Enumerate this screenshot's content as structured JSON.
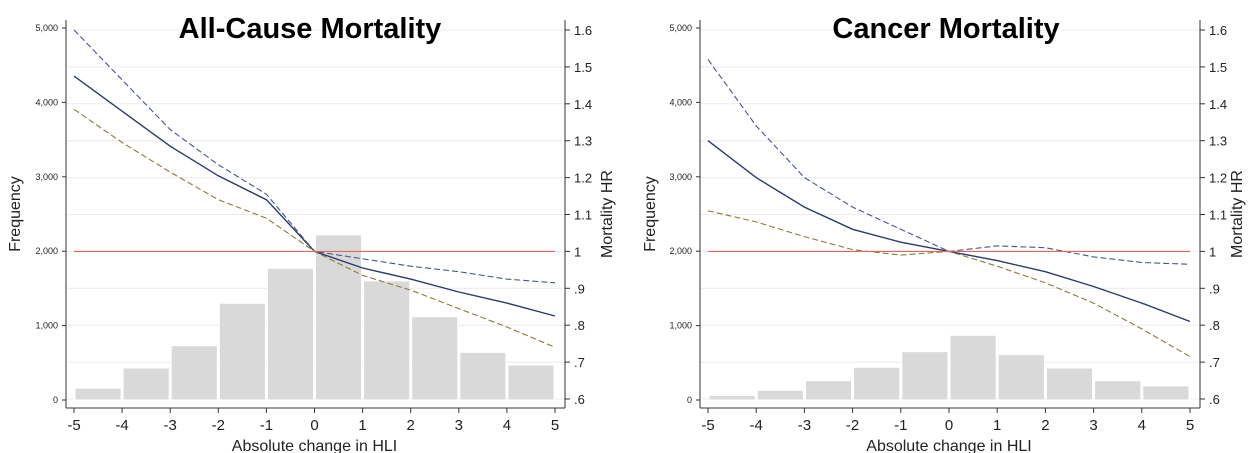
{
  "chart_data": [
    {
      "type": "bar",
      "title": "All-Cause Mortality",
      "xlabel": "Absolute change in HLI",
      "ylabel": "Frequency",
      "y2label": "Mortality HR",
      "xlim": [
        -5,
        5
      ],
      "ylim": [
        0,
        5000
      ],
      "y2lim": [
        0.6,
        1.6
      ],
      "x_ticks": [
        "-5",
        "-4",
        "-3",
        "-2",
        "-1",
        "0",
        "1",
        "2",
        "3",
        "4",
        "5"
      ],
      "y_ticks": [
        "0",
        "1,000",
        "2,000",
        "3,000",
        "4,000",
        "5,000"
      ],
      "y2_ticks": [
        ".6",
        ".7",
        ".8",
        ".9",
        "1",
        "1.1",
        "1.2",
        "1.3",
        "1.4",
        "1.5",
        "1.6"
      ],
      "grid": true,
      "histogram": {
        "bins": [
          [
            -5,
            -4
          ],
          [
            -4,
            -3
          ],
          [
            -3,
            -2
          ],
          [
            -2,
            -1
          ],
          [
            -1,
            0
          ],
          [
            0,
            1
          ],
          [
            1,
            2
          ],
          [
            2,
            3
          ],
          [
            3,
            4
          ],
          [
            4,
            5
          ]
        ],
        "values": [
          160,
          430,
          730,
          1300,
          1770,
          2220,
          1600,
          1120,
          640,
          470
        ],
        "color": "#d9d9d9"
      },
      "series": [
        {
          "role": "hr",
          "color": "#2b3a6b",
          "style": "solid",
          "x": [
            -5,
            -4,
            -3,
            -2,
            -1,
            0,
            1,
            2,
            3,
            4,
            5
          ],
          "y": [
            1.475,
            1.38,
            1.285,
            1.205,
            1.14,
            1.0,
            0.955,
            0.925,
            0.89,
            0.86,
            0.825
          ]
        },
        {
          "role": "upper-ci",
          "color": "#47568a",
          "style": "dashed",
          "x": [
            -5,
            -4,
            -3,
            -2,
            -1,
            0,
            1,
            2,
            3,
            4,
            5
          ],
          "y": [
            1.6,
            1.465,
            1.33,
            1.235,
            1.155,
            1.0,
            0.98,
            0.96,
            0.945,
            0.925,
            0.915
          ]
        },
        {
          "role": "lower-ci",
          "color": "#8a7a3a",
          "style": "dashed",
          "x": [
            -5,
            -4,
            -3,
            -2,
            -1,
            0,
            1,
            2,
            3,
            4,
            5
          ],
          "y": [
            1.385,
            1.295,
            1.215,
            1.14,
            1.09,
            1.0,
            0.935,
            0.895,
            0.845,
            0.795,
            0.74
          ]
        },
        {
          "role": "reference",
          "color": "#e06666",
          "style": "solid",
          "x": [
            -5,
            5
          ],
          "y": [
            1.0,
            1.0
          ]
        }
      ]
    },
    {
      "type": "bar",
      "title": "Cancer Mortality",
      "xlabel": "Absolute change in HLI",
      "ylabel": "Frequency",
      "y2label": "Mortality HR",
      "xlim": [
        -5,
        5
      ],
      "ylim": [
        0,
        5000
      ],
      "y2lim": [
        0.6,
        1.6
      ],
      "x_ticks": [
        "-5",
        "-4",
        "-3",
        "-2",
        "-1",
        "0",
        "1",
        "2",
        "3",
        "4",
        "5"
      ],
      "y_ticks": [
        "0",
        "1,000",
        "2,000",
        "3,000",
        "4,000",
        "5,000"
      ],
      "y2_ticks": [
        ".6",
        ".7",
        ".8",
        ".9",
        "1",
        "1.1",
        "1.2",
        "1.3",
        "1.4",
        "1.5",
        "1.6"
      ],
      "grid": true,
      "histogram": {
        "bins": [
          [
            -5,
            -4
          ],
          [
            -4,
            -3
          ],
          [
            -3,
            -2
          ],
          [
            -2,
            -1
          ],
          [
            -1,
            0
          ],
          [
            0,
            1
          ],
          [
            1,
            2
          ],
          [
            2,
            3
          ],
          [
            3,
            4
          ],
          [
            4,
            5
          ]
        ],
        "values": [
          60,
          130,
          260,
          440,
          650,
          870,
          610,
          430,
          260,
          190
        ],
        "color": "#d9d9d9"
      },
      "series": [
        {
          "role": "hr",
          "color": "#2b3a6b",
          "style": "solid",
          "x": [
            -5,
            -4,
            -3,
            -2,
            -1,
            0,
            1,
            2,
            3,
            4,
            5
          ],
          "y": [
            1.3,
            1.2,
            1.12,
            1.06,
            1.025,
            1.0,
            0.975,
            0.945,
            0.905,
            0.86,
            0.81
          ]
        },
        {
          "role": "upper-ci",
          "color": "#47568a",
          "style": "dashed",
          "x": [
            -5,
            -4,
            -3,
            -2,
            -1,
            0,
            1,
            2,
            3,
            4,
            5
          ],
          "y": [
            1.52,
            1.34,
            1.2,
            1.12,
            1.06,
            1.0,
            1.015,
            1.01,
            0.985,
            0.97,
            0.965
          ]
        },
        {
          "role": "lower-ci",
          "color": "#8a7a3a",
          "style": "dashed",
          "x": [
            -5,
            -4,
            -3,
            -2,
            -1,
            0,
            1,
            2,
            3,
            4,
            5
          ],
          "y": [
            1.11,
            1.08,
            1.04,
            1.005,
            0.99,
            1.0,
            0.96,
            0.915,
            0.86,
            0.79,
            0.715
          ]
        },
        {
          "role": "reference",
          "color": "#e06666",
          "style": "solid",
          "x": [
            -5,
            5
          ],
          "y": [
            1.0,
            1.0
          ]
        }
      ]
    }
  ]
}
